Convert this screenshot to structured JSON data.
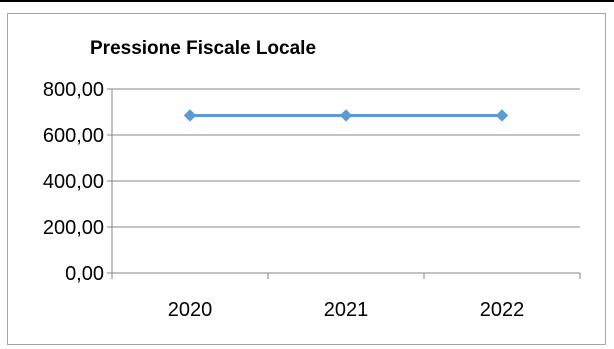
{
  "chart_data": {
    "type": "line",
    "title": "Pressione Fiscale Locale",
    "xlabel": "",
    "ylabel": "",
    "categories": [
      "2020",
      "2021",
      "2022"
    ],
    "series": [
      {
        "values": [
          685,
          685,
          685
        ],
        "color": "#5b9bd5",
        "marker": "diamond"
      }
    ],
    "yticks": [
      "0,00",
      "200,00",
      "400,00",
      "600,00",
      "800,00"
    ],
    "ylim": [
      0,
      800
    ],
    "grid": true,
    "legend": "none"
  }
}
